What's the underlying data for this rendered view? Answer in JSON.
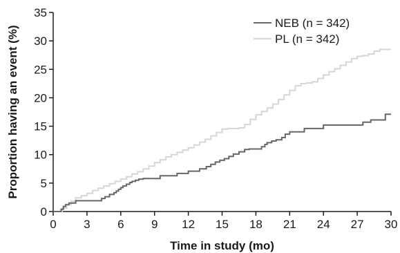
{
  "chart_data": {
    "type": "line",
    "title": "",
    "xlabel": "Time in study (mo)",
    "ylabel": "Proportion having an event (%)",
    "xlim": [
      0,
      30
    ],
    "ylim": [
      0,
      35
    ],
    "xticks": [
      "0",
      "3",
      "6",
      "9",
      "12",
      "15",
      "18",
      "21",
      "24",
      "27",
      "30"
    ],
    "yticks": [
      "0",
      "5",
      "10",
      "15",
      "20",
      "25",
      "30",
      "35"
    ],
    "grid": false,
    "legend": "top-right",
    "step": true,
    "series": [
      {
        "name": "NEB (n = 342)",
        "color": "#666666",
        "x": [
          0,
          0.7,
          0.9,
          1.1,
          1.4,
          2.0,
          4.3,
          4.6,
          5.0,
          5.4,
          5.6,
          5.8,
          6.0,
          6.2,
          6.5,
          6.8,
          7.0,
          7.3,
          7.6,
          8.0,
          9.5,
          11.0,
          12.0,
          13.0,
          13.6,
          14.0,
          14.4,
          14.8,
          15.2,
          15.6,
          16.0,
          16.5,
          17.0,
          17.4,
          18.5,
          18.8,
          19.0,
          19.4,
          19.8,
          20.3,
          20.6,
          21.0,
          22.3,
          24.0,
          27.5,
          28.2,
          29.5,
          30.0
        ],
        "values": [
          0,
          0.4,
          0.9,
          1.2,
          1.5,
          1.9,
          2.3,
          2.6,
          3.0,
          3.3,
          3.6,
          3.9,
          4.2,
          4.5,
          4.8,
          5.1,
          5.3,
          5.5,
          5.7,
          5.8,
          6.3,
          6.7,
          7.1,
          7.5,
          7.9,
          8.3,
          8.7,
          9.0,
          9.3,
          9.7,
          10.1,
          10.5,
          10.9,
          11.0,
          11.4,
          11.8,
          12.1,
          12.4,
          12.6,
          13.0,
          13.6,
          14.0,
          14.6,
          15.2,
          15.7,
          16.1,
          17.1,
          17.1
        ]
      },
      {
        "name": "PL (n = 342)",
        "color": "#d6d6d6",
        "x": [
          0,
          0.8,
          1.2,
          1.6,
          2.0,
          2.5,
          3.0,
          3.5,
          4.0,
          4.5,
          5.0,
          5.5,
          6.0,
          6.5,
          7.0,
          7.5,
          8.0,
          8.5,
          9.0,
          9.5,
          10.0,
          10.5,
          11.0,
          11.5,
          12.0,
          12.5,
          13.0,
          13.5,
          14.0,
          14.5,
          15.0,
          15.5,
          16.0,
          16.5,
          17.0,
          17.5,
          18.0,
          18.5,
          19.0,
          19.5,
          20.0,
          20.5,
          21.0,
          21.5,
          22.0,
          22.5,
          23.0,
          23.5,
          24.0,
          24.5,
          25.0,
          25.5,
          26.0,
          26.5,
          27.0,
          27.5,
          28.0,
          28.5,
          29.0,
          29.5,
          30.0
        ],
        "values": [
          0,
          0.6,
          1.2,
          1.8,
          2.4,
          2.8,
          3.2,
          3.7,
          4.1,
          4.5,
          4.9,
          5.3,
          5.7,
          6.1,
          6.6,
          7.0,
          7.5,
          8.0,
          8.6,
          9.1,
          9.6,
          10.0,
          10.4,
          10.8,
          11.2,
          11.7,
          12.2,
          12.7,
          13.3,
          13.9,
          14.5,
          14.6,
          14.6,
          14.7,
          15.3,
          16.2,
          17.0,
          17.6,
          18.2,
          18.9,
          19.7,
          20.5,
          21.3,
          22.1,
          22.5,
          22.6,
          22.8,
          23.4,
          24.0,
          24.6,
          25.1,
          25.7,
          26.3,
          26.9,
          27.3,
          27.4,
          27.7,
          28.2,
          28.5,
          28.5,
          28.5
        ]
      }
    ]
  }
}
